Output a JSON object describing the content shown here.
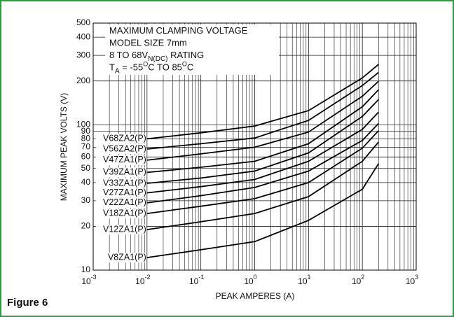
{
  "chart_data": {
    "type": "line",
    "figure_label": "Figure 6",
    "x_label": "PEAK AMPERES (A)",
    "y_label": "MAXIMUM PEAK VOLTS (V)",
    "annotation": [
      [
        {
          "text": "MAXIMUM CLAMPING VOLTAGE"
        }
      ],
      [
        {
          "text": "MODEL SIZE 7mm"
        }
      ],
      [
        {
          "text": "8 TO 68V"
        },
        {
          "text": "N(DC)",
          "shift": "sub"
        },
        {
          "text": " RATING"
        }
      ],
      [
        {
          "text": "T"
        },
        {
          "text": "A",
          "shift": "sub"
        },
        {
          "text": " = -55"
        },
        {
          "text": "O",
          "shift": "sup"
        },
        {
          "text": "C TO 85"
        },
        {
          "text": "O",
          "shift": "sup"
        },
        {
          "text": "C"
        }
      ]
    ],
    "x_log": true,
    "y_log": true,
    "grid": true,
    "xlim": [
      0.001,
      1000
    ],
    "ylim": [
      10,
      500
    ],
    "xticks": [
      {
        "value": 0.001,
        "label": "10",
        "exponent": "-3"
      },
      {
        "value": 0.01,
        "label": "10",
        "exponent": "-2"
      },
      {
        "value": 0.1,
        "label": "10",
        "exponent": "-1"
      },
      {
        "value": 1,
        "label": "10",
        "exponent": "0"
      },
      {
        "value": 10,
        "label": "10",
        "exponent": "1"
      },
      {
        "value": 100,
        "label": "10",
        "exponent": "2"
      },
      {
        "value": 1000,
        "label": "10",
        "exponent": "3"
      }
    ],
    "yticks": [
      10,
      20,
      30,
      40,
      50,
      60,
      70,
      80,
      90,
      100,
      200,
      300,
      400,
      500
    ],
    "x": [
      0.01,
      0.1,
      1,
      10,
      100,
      200
    ],
    "series": [
      {
        "name": "V68ZA2(P)",
        "color": "#000000",
        "values": [
          80,
          88,
          98,
          125,
          210,
          260
        ]
      },
      {
        "name": "V56ZA2(P)",
        "color": "#000000",
        "values": [
          68,
          74,
          81,
          107,
          186,
          229
        ]
      },
      {
        "name": "V47ZA1(P)",
        "color": "#000000",
        "values": [
          57,
          63,
          70,
          89,
          157,
          199
        ]
      },
      {
        "name": "V39ZA1(P)",
        "color": "#000000",
        "values": [
          47,
          51,
          56,
          74,
          133,
          174
        ]
      },
      {
        "name": "V33ZA1(P)",
        "color": "#000000",
        "values": [
          39.5,
          43,
          48,
          64,
          114,
          149
        ]
      },
      {
        "name": "V27ZA1(P)",
        "color": "#000000",
        "values": [
          34,
          37.5,
          42,
          56,
          93,
          122
        ]
      },
      {
        "name": "V22ZA1(P)",
        "color": "#000000",
        "values": [
          29,
          32.5,
          37,
          48,
          78,
          102
        ]
      },
      {
        "name": "V18ZA1(P)",
        "color": "#000000",
        "values": [
          24.5,
          27.5,
          31,
          40,
          69,
          91
        ]
      },
      {
        "name": "V12ZA1(P)",
        "color": "#000000",
        "values": [
          19,
          21.5,
          24.5,
          32,
          56,
          76
        ]
      },
      {
        "name": "V8ZA1(P)",
        "color": "#000000",
        "values": [
          12.2,
          13.8,
          15.7,
          22,
          36,
          54
        ]
      }
    ]
  }
}
